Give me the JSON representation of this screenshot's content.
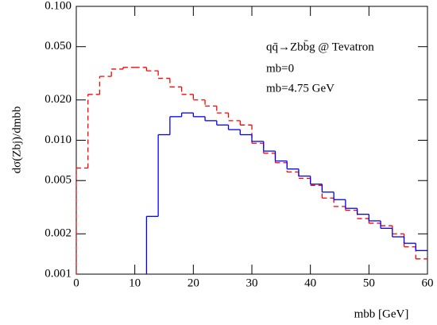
{
  "chart_data": {
    "type": "histogram-step",
    "title": "qq̄→Zbb̄g @ Tevatron",
    "xlabel": "mbb [GeV]",
    "ylabel": "dσ(Zbj)/dmbb",
    "bins": [
      0,
      2,
      4,
      6,
      8,
      10,
      12,
      14,
      16,
      18,
      20,
      22,
      24,
      26,
      28,
      30,
      32,
      34,
      36,
      38,
      40,
      42,
      44,
      46,
      48,
      50,
      52,
      54,
      56,
      58,
      60
    ],
    "series": [
      {
        "name": "mb=0",
        "color": "#ff0000",
        "dashed": true,
        "values": [
          0.0062,
          0.022,
          0.03,
          0.034,
          0.035,
          0.035,
          0.033,
          0.029,
          0.025,
          0.022,
          0.02,
          0.018,
          0.016,
          0.014,
          0.013,
          0.0095,
          0.008,
          0.0068,
          0.0058,
          0.0052,
          0.0046,
          0.0037,
          0.0032,
          0.003,
          0.0026,
          0.0024,
          0.0023,
          0.002,
          0.0016,
          0.0013
        ]
      },
      {
        "name": "mb=4.75 GeV",
        "color": "#0000ff",
        "dashed": false,
        "values": [
          null,
          null,
          null,
          null,
          null,
          null,
          0.0027,
          0.011,
          0.015,
          0.016,
          0.015,
          0.014,
          0.013,
          0.012,
          0.011,
          0.0098,
          0.0083,
          0.007,
          0.0061,
          0.0054,
          0.0047,
          0.0041,
          0.0036,
          0.0031,
          0.0028,
          0.0025,
          0.0022,
          0.0019,
          0.0017,
          0.0015
        ]
      }
    ],
    "xlim": [
      0,
      60
    ],
    "xticks": [
      0,
      10,
      20,
      30,
      40,
      50,
      60
    ],
    "ylim": [
      0.001,
      0.1
    ],
    "log_y": true,
    "yticks": [
      {
        "value": 0.1,
        "label": "0.100"
      },
      {
        "value": 0.05,
        "label": "0.050"
      },
      {
        "value": 0.02,
        "label": "0.020"
      },
      {
        "value": 0.01,
        "label": "0.010"
      },
      0.005,
      0.002,
      0.001
    ]
  }
}
